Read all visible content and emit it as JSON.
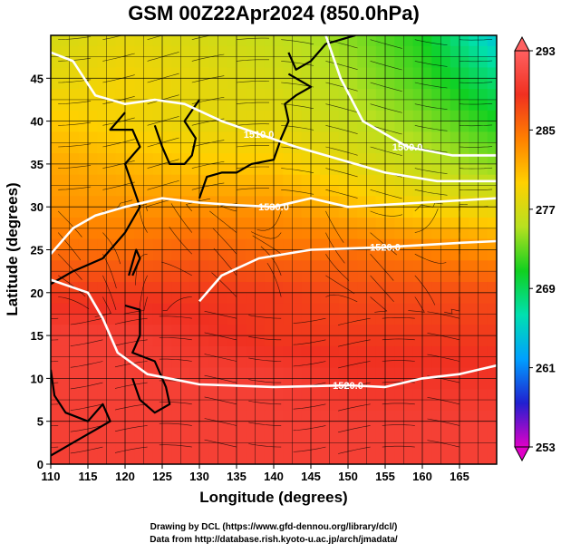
{
  "chart_data": {
    "type": "heatmap",
    "title": "GSM 00Z22Apr2024 (850.0hPa)",
    "xlabel": "Longitude (degrees)",
    "ylabel": "Latitude (degrees)",
    "xlim": [
      110,
      170
    ],
    "ylim": [
      0,
      50
    ],
    "x_ticks": [
      "110",
      "115",
      "120",
      "125",
      "130",
      "135",
      "140",
      "145",
      "150",
      "155",
      "160",
      "165"
    ],
    "y_ticks": [
      "0",
      "5",
      "10",
      "15",
      "20",
      "25",
      "30",
      "35",
      "40",
      "45"
    ],
    "grid": true,
    "colorbar": {
      "position": "right",
      "range": [
        253,
        293
      ],
      "tick_labels": [
        "293",
        "285",
        "277",
        "269",
        "261",
        "253"
      ],
      "colors_low_to_high": [
        "#e000c8",
        "#2020d0",
        "#00a0ff",
        "#00e0b0",
        "#10d020",
        "#b8e020",
        "#ffd000",
        "#ff8000",
        "#f03020",
        "#ff6060"
      ]
    },
    "temperature_grid_K": {
      "lats": [
        50,
        45,
        40,
        35,
        30,
        25,
        20,
        15,
        10,
        5,
        0
      ],
      "lons": [
        110,
        120,
        130,
        140,
        150,
        160,
        170
      ],
      "values": [
        [
          277,
          278,
          277,
          276,
          274,
          271,
          264
        ],
        [
          278,
          279,
          278,
          277,
          275,
          272,
          268
        ],
        [
          280,
          279,
          278,
          278,
          276,
          274,
          271
        ],
        [
          282,
          281,
          280,
          280,
          278,
          276,
          274
        ],
        [
          283,
          283,
          283,
          283,
          281,
          279,
          278
        ],
        [
          285,
          285,
          286,
          285,
          285,
          284,
          283
        ],
        [
          288,
          288,
          288,
          288,
          287,
          287,
          287
        ],
        [
          290,
          290,
          289,
          288,
          288,
          288,
          288
        ],
        [
          290,
          290,
          290,
          290,
          289,
          289,
          289
        ],
        [
          290,
          290,
          290,
          290,
          290,
          290,
          290
        ],
        [
          290,
          290,
          290,
          290,
          290,
          290,
          290
        ]
      ]
    },
    "contours": [
      {
        "label": "1520.0",
        "points": [
          [
            110,
            21.5
          ],
          [
            115,
            20
          ],
          [
            117,
            17
          ],
          [
            119,
            13
          ],
          [
            123,
            10.5
          ],
          [
            130,
            9.3
          ],
          [
            140,
            9
          ],
          [
            150,
            9.2
          ],
          [
            155,
            9
          ],
          [
            160,
            10
          ],
          [
            165,
            10.5
          ],
          [
            170,
            11.5
          ]
        ]
      },
      {
        "label": "1530.0",
        "points": [
          [
            110,
            24.5
          ],
          [
            113,
            27.5
          ],
          [
            116,
            29
          ],
          [
            120,
            30
          ],
          [
            125,
            31
          ],
          [
            130,
            30.5
          ],
          [
            135,
            30.2
          ],
          [
            140,
            30
          ],
          [
            145,
            31
          ],
          [
            150,
            30
          ],
          [
            160,
            30.5
          ],
          [
            170,
            31
          ]
        ]
      },
      {
        "label": "1520.0",
        "points": [
          [
            130,
            19
          ],
          [
            133,
            22
          ],
          [
            138,
            24
          ],
          [
            145,
            25
          ],
          [
            155,
            25.3
          ],
          [
            165,
            25.8
          ],
          [
            170,
            26
          ]
        ]
      },
      {
        "label": "1510.0",
        "points": [
          [
            110,
            48
          ],
          [
            113,
            47
          ],
          [
            116,
            43
          ],
          [
            120,
            42
          ],
          [
            124,
            42.5
          ],
          [
            128,
            42
          ],
          [
            133,
            40
          ],
          [
            138,
            38.5
          ],
          [
            143,
            37
          ],
          [
            147,
            36
          ],
          [
            155,
            34
          ],
          [
            162,
            33
          ],
          [
            170,
            33
          ]
        ]
      },
      {
        "label": "1500.0",
        "points": [
          [
            147,
            50
          ],
          [
            149,
            45
          ],
          [
            152,
            40
          ],
          [
            158,
            37
          ],
          [
            164,
            36
          ],
          [
            170,
            36
          ]
        ]
      }
    ],
    "credits": [
      "Drawing by DCL (https://www.gfd-dennou.org/library/dcl/)",
      "Data from http://database.rish.kyoto-u.ac.jp/arch/jmadata/"
    ]
  }
}
